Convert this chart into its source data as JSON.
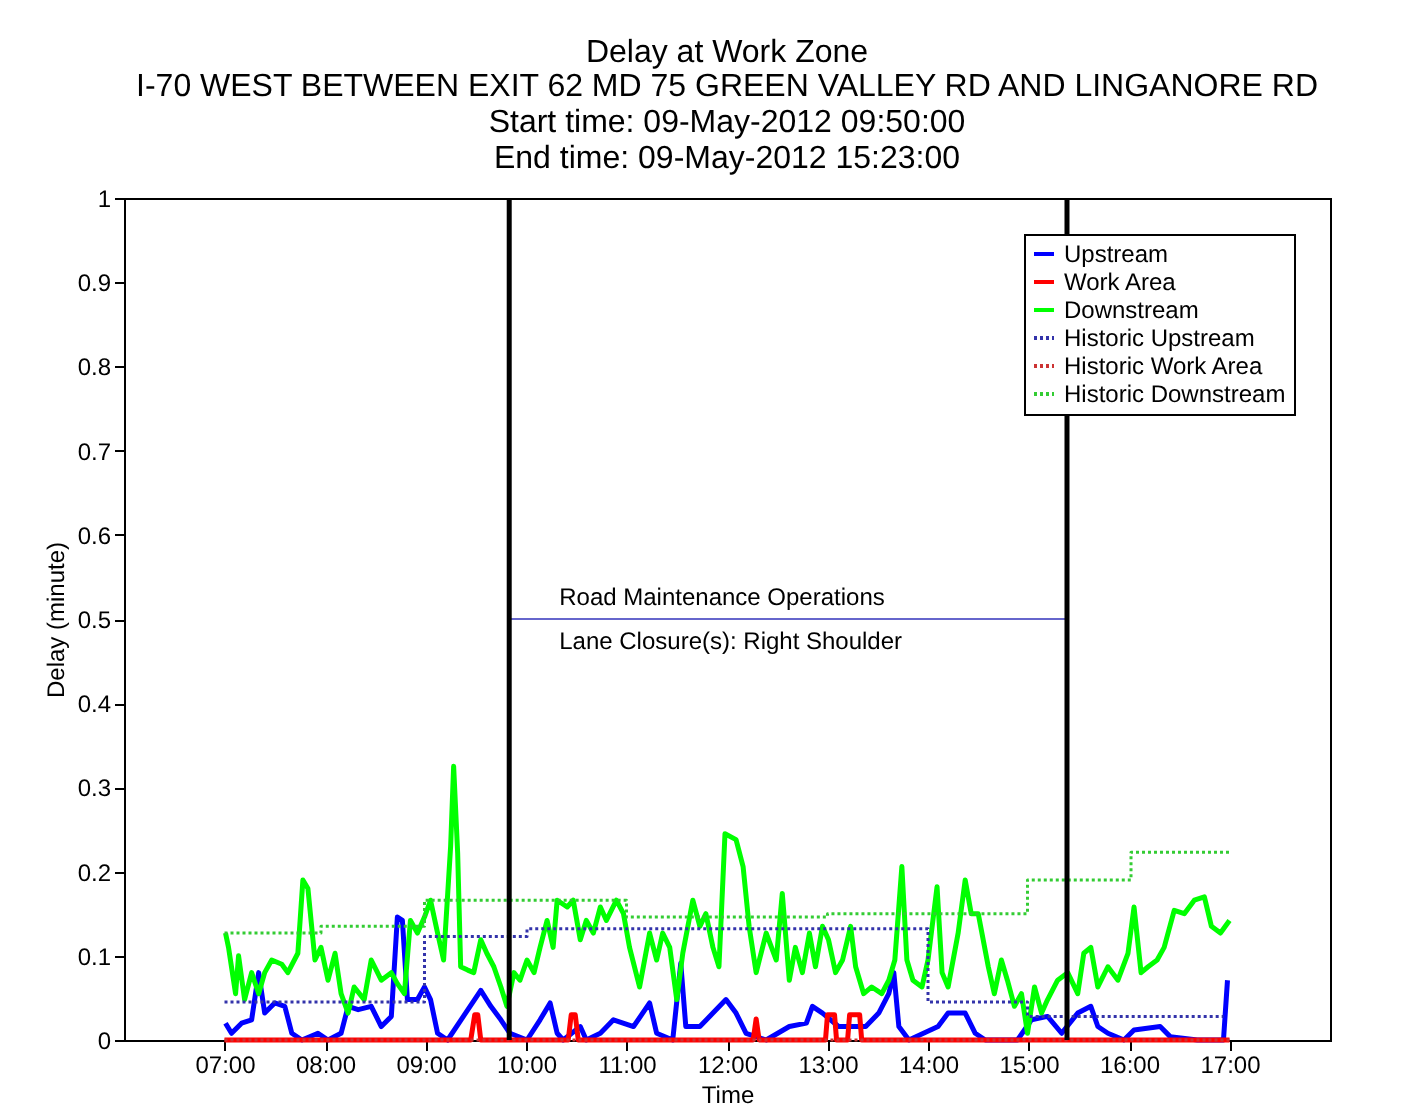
{
  "chart_data": {
    "type": "line",
    "title": "Delay at Work Zone",
    "subtitle": "I-70 WEST BETWEEN EXIT 62 MD 75 GREEN VALLEY RD AND LINGANORE RD\nStart time: 09-May-2012 09:50:00\nEnd time: 09-May-2012 15:23:00",
    "xlabel": "Time",
    "ylabel": "Delay (minute)",
    "xlim": [
      6,
      18
    ],
    "xticks": [
      {
        "value": 7,
        "label": "07:00"
      },
      {
        "value": 8,
        "label": "08:00"
      },
      {
        "value": 9,
        "label": "09:00"
      },
      {
        "value": 10,
        "label": "10:00"
      },
      {
        "value": 11,
        "label": "11:00"
      },
      {
        "value": 12,
        "label": "12:00"
      },
      {
        "value": 13,
        "label": "13:00"
      },
      {
        "value": 14,
        "label": "14:00"
      },
      {
        "value": 15,
        "label": "15:00"
      },
      {
        "value": 16,
        "label": "16:00"
      },
      {
        "value": 17,
        "label": "17:00"
      }
    ],
    "ylim": [
      0,
      1
    ],
    "yticks": [
      0,
      0.1,
      0.2,
      0.3,
      0.4,
      0.5,
      0.6,
      0.7,
      0.8,
      0.9,
      1
    ],
    "grid": false,
    "legend": "top right",
    "line_style": "solid",
    "marker": "none",
    "series": [
      {
        "name": "Upstream",
        "color": "#0000ff",
        "x": [
          7.01,
          7.07,
          7.17,
          7.27,
          7.34,
          7.4,
          7.5,
          7.6,
          7.67,
          7.77,
          7.93,
          8.03,
          8.16,
          8.23,
          8.33,
          8.46,
          8.56,
          8.66,
          8.72,
          8.77,
          8.82,
          8.92,
          8.99,
          9.05,
          9.12,
          9.22,
          9.55,
          9.65,
          9.75,
          9.84,
          10.01,
          10.14,
          10.24,
          10.31,
          10.37,
          10.54,
          10.6,
          10.74,
          10.87,
          11.07,
          11.23,
          11.3,
          11.46,
          11.54,
          11.59,
          11.73,
          11.86,
          11.99,
          12.09,
          12.19,
          12.39,
          12.62,
          12.79,
          12.85,
          12.95,
          13.11,
          13.38,
          13.51,
          13.61,
          13.66,
          13.71,
          13.81,
          14.1,
          14.2,
          14.37,
          14.47,
          14.57,
          14.89,
          15.03,
          15.19,
          15.33,
          15.49,
          15.62,
          15.69,
          15.79,
          15.95,
          16.05,
          16.31,
          16.41,
          16.68,
          16.94,
          16.98
        ],
        "values": [
          0.02,
          0.008,
          0.02,
          0.024,
          0.08,
          0.032,
          0.044,
          0.04,
          0.008,
          0,
          0.008,
          0,
          0.008,
          0.04,
          0.036,
          0.04,
          0.016,
          0.028,
          0.146,
          0.142,
          0.048,
          0.048,
          0.063,
          0.048,
          0.008,
          0,
          0.059,
          0.04,
          0.024,
          0.008,
          0,
          0.024,
          0.044,
          0.008,
          0,
          0.016,
          0,
          0.008,
          0.024,
          0.016,
          0.044,
          0.008,
          0,
          0.091,
          0.016,
          0.016,
          0.032,
          0.048,
          0.032,
          0.008,
          0,
          0.016,
          0.02,
          0.04,
          0.032,
          0.016,
          0.016,
          0.032,
          0.055,
          0.08,
          0.016,
          0,
          0.016,
          0.032,
          0.032,
          0.008,
          0,
          0,
          0.024,
          0.028,
          0.008,
          0.032,
          0.04,
          0.016,
          0.008,
          0,
          0.012,
          0.016,
          0.004,
          0,
          0,
          0.071
        ]
      },
      {
        "name": "Work Area",
        "color": "#ff0000",
        "x": [
          7.0,
          9.45,
          9.49,
          9.52,
          9.55,
          10.42,
          10.45,
          10.49,
          10.52,
          12.26,
          12.29,
          12.32,
          12.98,
          13.0,
          13.07,
          13.09,
          13.2,
          13.22,
          13.32,
          13.34,
          17.0
        ],
        "values": [
          0,
          0,
          0.03,
          0.03,
          0,
          0,
          0.03,
          0.03,
          0,
          0,
          0.025,
          0,
          0,
          0.03,
          0.03,
          0,
          0,
          0.03,
          0.03,
          0,
          0
        ]
      },
      {
        "name": "Downstream",
        "color": "#00ff00",
        "x": [
          7.01,
          7.04,
          7.11,
          7.14,
          7.2,
          7.27,
          7.34,
          7.4,
          7.47,
          7.57,
          7.63,
          7.73,
          7.78,
          7.83,
          7.9,
          7.96,
          8.03,
          8.1,
          8.16,
          8.23,
          8.29,
          8.39,
          8.46,
          8.56,
          8.66,
          8.72,
          8.79,
          8.85,
          8.92,
          8.99,
          9.05,
          9.12,
          9.18,
          9.25,
          9.28,
          9.32,
          9.35,
          9.42,
          9.48,
          9.55,
          9.61,
          9.68,
          9.75,
          9.81,
          9.88,
          9.94,
          10.01,
          10.08,
          10.14,
          10.21,
          10.27,
          10.31,
          10.41,
          10.47,
          10.54,
          10.6,
          10.67,
          10.74,
          10.8,
          10.9,
          10.97,
          11.03,
          11.13,
          11.23,
          11.3,
          11.36,
          11.43,
          11.5,
          11.56,
          11.66,
          11.73,
          11.79,
          11.86,
          11.92,
          11.98,
          12.09,
          12.16,
          12.22,
          12.29,
          12.39,
          12.49,
          12.55,
          12.62,
          12.68,
          12.75,
          12.82,
          12.88,
          12.95,
          13.01,
          13.08,
          13.15,
          13.23,
          13.28,
          13.36,
          13.44,
          13.54,
          13.61,
          13.67,
          13.74,
          13.79,
          13.85,
          13.94,
          14.0,
          14.09,
          14.14,
          14.2,
          14.3,
          14.37,
          14.43,
          14.5,
          14.6,
          14.66,
          14.73,
          14.79,
          14.86,
          14.93,
          14.99,
          15.06,
          15.13,
          15.19,
          15.29,
          15.39,
          15.49,
          15.55,
          15.62,
          15.69,
          15.79,
          15.89,
          15.99,
          16.05,
          16.12,
          16.19,
          16.28,
          16.35,
          16.45,
          16.55,
          16.65,
          16.75,
          16.82,
          16.91,
          17.0
        ],
        "values": [
          0.127,
          0.11,
          0.055,
          0.1,
          0.048,
          0.08,
          0.055,
          0.08,
          0.095,
          0.09,
          0.08,
          0.103,
          0.19,
          0.18,
          0.095,
          0.11,
          0.071,
          0.103,
          0.055,
          0.032,
          0.063,
          0.048,
          0.095,
          0.071,
          0.08,
          0.067,
          0.055,
          0.142,
          0.127,
          0.146,
          0.166,
          0.127,
          0.095,
          0.23,
          0.325,
          0.222,
          0.087,
          0.083,
          0.08,
          0.119,
          0.103,
          0.087,
          0.063,
          0.04,
          0.08,
          0.071,
          0.095,
          0.08,
          0.11,
          0.142,
          0.11,
          0.166,
          0.158,
          0.166,
          0.119,
          0.142,
          0.127,
          0.158,
          0.142,
          0.166,
          0.15,
          0.11,
          0.063,
          0.127,
          0.095,
          0.127,
          0.11,
          0.048,
          0.103,
          0.166,
          0.135,
          0.15,
          0.11,
          0.087,
          0.245,
          0.238,
          0.206,
          0.135,
          0.08,
          0.127,
          0.095,
          0.174,
          0.071,
          0.11,
          0.08,
          0.127,
          0.087,
          0.135,
          0.119,
          0.08,
          0.095,
          0.135,
          0.087,
          0.055,
          0.063,
          0.055,
          0.071,
          0.095,
          0.206,
          0.095,
          0.071,
          0.063,
          0.095,
          0.182,
          0.08,
          0.063,
          0.127,
          0.19,
          0.15,
          0.15,
          0.087,
          0.055,
          0.095,
          0.071,
          0.04,
          0.055,
          0.008,
          0.063,
          0.032,
          0.048,
          0.071,
          0.08,
          0.055,
          0.103,
          0.11,
          0.063,
          0.087,
          0.071,
          0.103,
          0.158,
          0.08,
          0.087,
          0.095,
          0.11,
          0.154,
          0.15,
          0.166,
          0.17,
          0.135,
          0.127,
          0.142
        ]
      },
      {
        "name": "Historic Upstream",
        "color": "#3333aa",
        "type": "step",
        "line_style": "dotted",
        "x": [
          7.0,
          8.99,
          10.01,
          14.0,
          14.99,
          16.94
        ],
        "values": [
          0.045,
          0.123,
          0.132,
          0.045,
          0.028,
          0.028
        ]
      },
      {
        "name": "Historic Work Area",
        "color": "#cc3333",
        "type": "step",
        "line_style": "dotted",
        "x": [
          7.0,
          17.0
        ],
        "values": [
          0,
          0
        ]
      },
      {
        "name": "Historic Downstream",
        "color": "#33cc33",
        "type": "step",
        "line_style": "dotted",
        "x": [
          7.0,
          7.96,
          8.99,
          11.0,
          13.0,
          14.99,
          16.02,
          17.0
        ],
        "values": [
          0.127,
          0.135,
          0.166,
          0.146,
          0.15,
          0.19,
          0.223,
          0.223
        ]
      },
      {
        "color": "#6666cc",
        "x": [
          9.833,
          15.383
        ],
        "values": [
          0.5,
          0.5
        ]
      }
    ],
    "ref_lines": [
      {
        "axis": "x",
        "value": 9.833,
        "color": "#000000"
      },
      {
        "axis": "x",
        "value": 15.383,
        "color": "#000000"
      }
    ],
    "annotations": [
      "Road Maintenance Operations",
      "Lane Closure(s): Right Shoulder"
    ]
  }
}
